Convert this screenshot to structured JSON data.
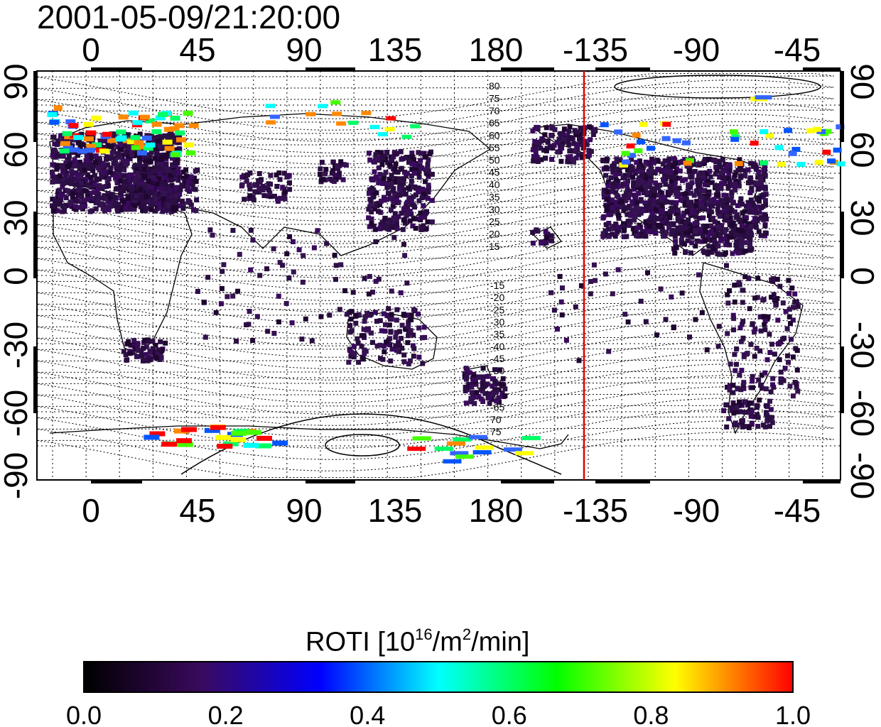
{
  "timestamp": "2001-05-09/21:20:00",
  "map": {
    "top_lon_labels": [
      "0",
      "45",
      "90",
      "135",
      "180",
      "-135",
      "-90",
      "-45"
    ],
    "bottom_lon_labels": [
      "0",
      "45",
      "90",
      "135",
      "180",
      "-135",
      "-90",
      "-45"
    ],
    "left_lat_labels": [
      "90",
      "60",
      "30",
      "0",
      "-30",
      "-60",
      "-90"
    ],
    "right_lat_labels": [
      "90",
      "60",
      "30",
      "0",
      "-30",
      "-60",
      "-90"
    ],
    "north_contour_labels": [
      "80",
      "75",
      "70",
      "65",
      "60",
      "55",
      "50",
      "45",
      "40",
      "35",
      "30",
      "25",
      "20",
      "15"
    ],
    "south_contour_labels": [
      "-15",
      "-20",
      "-25",
      "-30",
      "-35",
      "-40",
      "-45",
      "-50",
      "-55",
      "-60",
      "-65",
      "70",
      "75"
    ],
    "terminator_line_color": "#dd0000",
    "terminator_longitude": -155
  },
  "colorbar": {
    "title_prefix": "ROTI  [10",
    "title_exp1": "16",
    "title_mid": "/m",
    "title_exp2": "2",
    "title_suffix": "/min]",
    "tick_labels": [
      "0.0",
      "0.2",
      "0.4",
      "0.6",
      "0.8",
      "1.0"
    ],
    "colors": [
      "#000000",
      "#3a0a5e",
      "#0000ff",
      "#00ffff",
      "#00ff00",
      "#ffff00",
      "#ff0000"
    ]
  }
}
